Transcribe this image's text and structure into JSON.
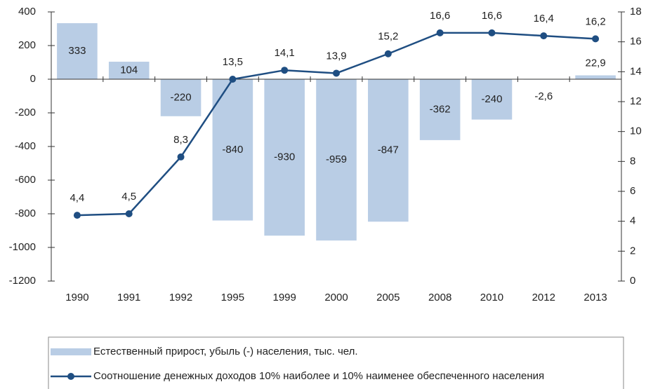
{
  "chart_data": {
    "type": "bar",
    "categories": [
      "1990",
      "1991",
      "1992",
      "1995",
      "1999",
      "2000",
      "2005",
      "2008",
      "2010",
      "2012",
      "2013"
    ],
    "series": [
      {
        "name": "Естественный прирост, убыль (-) населения, тыс. чел.",
        "type": "bar",
        "color": "#b9cde5",
        "values": [
          333,
          104,
          -220,
          -840,
          -930,
          -959,
          -847,
          -362,
          -240,
          -2.6,
          22.9
        ],
        "value_labels": [
          "333",
          "104",
          "-220",
          "-840",
          "-930",
          "-959",
          "-847",
          "-362",
          "-240",
          "-2,6",
          "22,9"
        ]
      },
      {
        "name": "Соотношение денежных доходов 10% наиболее и 10% наименее обеспеченного населения",
        "type": "line",
        "axis": "y2",
        "color": "#1f4e82",
        "values": [
          4.4,
          4.5,
          8.3,
          13.5,
          14.1,
          13.9,
          15.2,
          16.6,
          16.6,
          16.4,
          16.2
        ],
        "value_labels": [
          "4,4",
          "4,5",
          "8,3",
          "13,5",
          "14,1",
          "13,9",
          "15,2",
          "16,6",
          "16,6",
          "16,4",
          "16,2"
        ]
      }
    ],
    "ylim": [
      -1200,
      400
    ],
    "yticks": [
      -1200,
      -1000,
      -800,
      -600,
      -400,
      -200,
      0,
      200,
      400
    ],
    "y2lim": [
      0,
      18
    ],
    "y2ticks": [
      0,
      2,
      4,
      6,
      8,
      10,
      12,
      14,
      16,
      18
    ],
    "legend": "bottom"
  }
}
